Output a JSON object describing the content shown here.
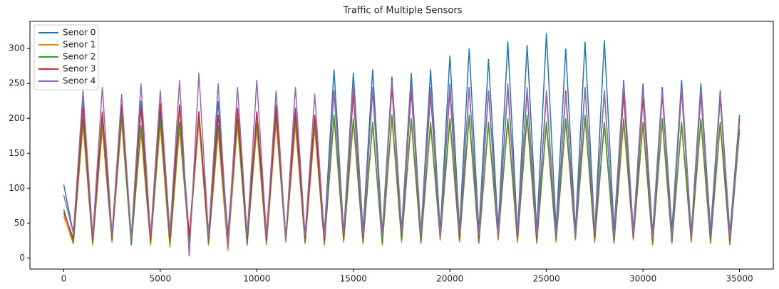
{
  "chart_data": {
    "type": "line",
    "title": "Traffic of Multiple Sensors",
    "x": [
      0,
      500,
      1000,
      1500,
      2000,
      2500,
      3000,
      3500,
      4000,
      4500,
      5000,
      5500,
      6000,
      6500,
      7000,
      7500,
      8000,
      8500,
      9000,
      9500,
      10000,
      10500,
      11000,
      11500,
      12000,
      12500,
      13000,
      13500,
      14000,
      14500,
      15000,
      15500,
      16000,
      16500,
      17000,
      17500,
      18000,
      18500,
      19000,
      19500,
      20000,
      20500,
      21000,
      21500,
      22000,
      22500,
      23000,
      23500,
      24000,
      24500,
      25000,
      25500,
      26000,
      26500,
      27000,
      27500,
      28000,
      28500,
      29000,
      29500,
      30000,
      30500,
      31000,
      31500,
      32000,
      32500,
      33000,
      33500,
      34000,
      34500,
      35000
    ],
    "series": [
      {
        "name": "Senor 0",
        "color": "#1f77b4",
        "values": [
          105,
          35,
          230,
          30,
          205,
          35,
          215,
          30,
          225,
          32,
          210,
          35,
          220,
          30,
          200,
          35,
          225,
          33,
          215,
          30,
          210,
          35,
          220,
          30,
          215,
          32,
          205,
          35,
          270,
          35,
          265,
          38,
          270,
          35,
          260,
          40,
          265,
          35,
          270,
          38,
          290,
          40,
          300,
          38,
          285,
          40,
          310,
          35,
          305,
          38,
          322,
          40,
          300,
          38,
          310,
          35,
          312,
          40,
          255,
          38,
          250,
          35,
          245,
          40,
          255,
          35,
          250,
          38,
          240,
          35,
          205
        ]
      },
      {
        "name": "Senor 1",
        "color": "#ff7f0e",
        "values": [
          60,
          20,
          190,
          18,
          185,
          22,
          195,
          20,
          180,
          18,
          190,
          15,
          185,
          20,
          195,
          18,
          180,
          10,
          190,
          20,
          185,
          18,
          195,
          22,
          190,
          20,
          185,
          18,
          200,
          22,
          195,
          20,
          190,
          18,
          200,
          22,
          195,
          20,
          190,
          25,
          195,
          22,
          200,
          20,
          190,
          25,
          195,
          22,
          200,
          20,
          190,
          22,
          195,
          25,
          200,
          22,
          190,
          20,
          195,
          25,
          190,
          18,
          195,
          20,
          190,
          22,
          195,
          20,
          190,
          18,
          180
        ]
      },
      {
        "name": "Senor 2",
        "color": "#2ca02c",
        "values": [
          70,
          22,
          200,
          20,
          195,
          25,
          205,
          18,
          190,
          22,
          200,
          20,
          195,
          22,
          205,
          20,
          190,
          22,
          200,
          18,
          195,
          22,
          205,
          25,
          200,
          22,
          195,
          20,
          205,
          25,
          200,
          22,
          195,
          20,
          205,
          25,
          200,
          22,
          195,
          28,
          200,
          25,
          205,
          22,
          195,
          28,
          200,
          25,
          205,
          22,
          195,
          25,
          200,
          28,
          205,
          25,
          195,
          22,
          200,
          28,
          195,
          20,
          200,
          22,
          195,
          25,
          200,
          22,
          195,
          20,
          185
        ]
      },
      {
        "name": "Senor 3",
        "color": "#d62728",
        "values": [
          65,
          28,
          215,
          25,
          210,
          30,
          220,
          28,
          215,
          25,
          222,
          28,
          218,
          30,
          210,
          28,
          205,
          25,
          215,
          28,
          210,
          25,
          215,
          30,
          210,
          28,
          205,
          25,
          240,
          30,
          235,
          28,
          240,
          30,
          245,
          32,
          240,
          30,
          235,
          32,
          240,
          30,
          245,
          28,
          240,
          32,
          245,
          30,
          240,
          28,
          235,
          30,
          240,
          32,
          245,
          30,
          240,
          28,
          235,
          30,
          230,
          25,
          235,
          28,
          240,
          30,
          235,
          28,
          230,
          25,
          200
        ]
      },
      {
        "name": "Senor 4",
        "color": "#9467bd",
        "values": [
          90,
          35,
          240,
          30,
          245,
          32,
          235,
          28,
          250,
          30,
          240,
          35,
          255,
          2,
          265,
          30,
          250,
          15,
          245,
          32,
          255,
          30,
          240,
          28,
          245,
          32,
          235,
          30,
          240,
          35,
          250,
          32,
          245,
          30,
          255,
          35,
          250,
          32,
          245,
          30,
          250,
          35,
          245,
          32,
          240,
          30,
          250,
          35,
          245,
          32,
          240,
          30,
          235,
          32,
          245,
          35,
          240,
          30,
          250,
          32,
          245,
          28,
          240,
          30,
          245,
          32,
          240,
          30,
          235,
          28,
          195
        ]
      }
    ],
    "xlim": [
      -1750,
      36750
    ],
    "ylim": [
      -16,
      339
    ],
    "xticks": [
      0,
      5000,
      10000,
      15000,
      20000,
      25000,
      30000,
      35000
    ],
    "yticks": [
      0,
      50,
      100,
      150,
      200,
      250,
      300
    ],
    "legend": "upper left"
  }
}
